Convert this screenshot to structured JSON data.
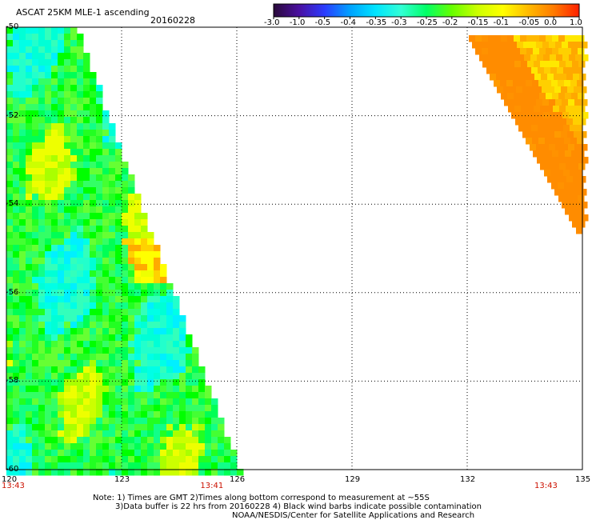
{
  "header": {
    "title": "ASCAT 25KM MLE-1 ascending",
    "date": "20160228"
  },
  "colorbar": {
    "labels": [
      "-3.0",
      "-1.0",
      "-0.5",
      "-0.4",
      "-0.35",
      "-0.3",
      "-0.25",
      "-0.2",
      "-0.15",
      "-0.1",
      "-0.05",
      "0.0",
      "1.0"
    ],
    "colors": [
      "#2a0a3a",
      "#4a10a0",
      "#2b3cff",
      "#00a2ff",
      "#00e4ff",
      "#33ffd6",
      "#00ff66",
      "#66ff00",
      "#ccff00",
      "#ffff00",
      "#ffbb00",
      "#ff7a00",
      "#ff2000"
    ]
  },
  "axes": {
    "lat_labels": [
      "-50",
      "-52",
      "-54",
      "-56",
      "-58",
      "-60"
    ],
    "lon_labels": [
      "120",
      "123",
      "126",
      "129",
      "132",
      "135"
    ],
    "time_labels": [
      {
        "text": "13:43",
        "lon": 120
      },
      {
        "text": "13:41",
        "lon": 125.3
      },
      {
        "text": "13:43",
        "lon": 134
      }
    ]
  },
  "map": {
    "lat_range": [
      -60,
      -50
    ],
    "lon_range": [
      120,
      135
    ]
  },
  "notes": {
    "line1": "Note: 1) Times are GMT 2)Times along bottom correspond to measurement at ~55S",
    "line2": "3)Data buffer is 22 hrs from 20160228 4) Black wind barbs indicate possible contamination",
    "line3": "NOAA/NESDIS/Center for Satellite Applications and Research"
  }
}
